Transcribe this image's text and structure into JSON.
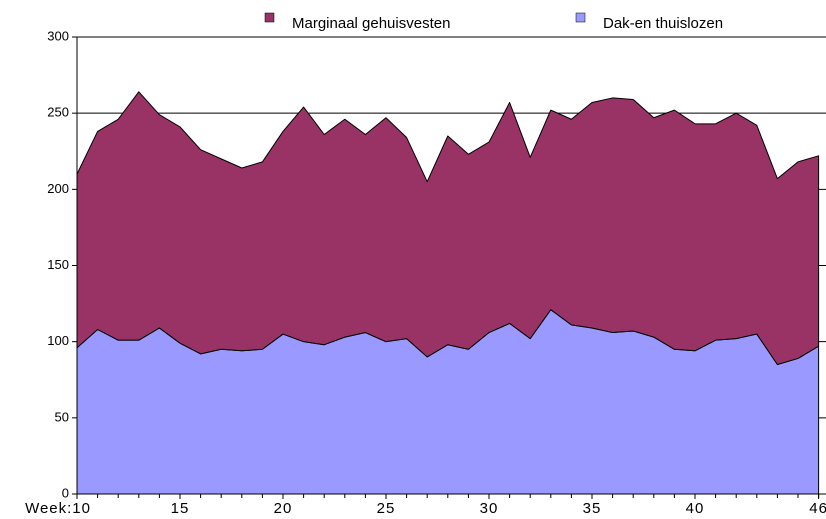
{
  "chart_data": {
    "type": "stacked-area",
    "x": [
      10,
      11,
      12,
      13,
      14,
      15,
      16,
      17,
      18,
      19,
      20,
      21,
      22,
      23,
      24,
      25,
      26,
      27,
      28,
      29,
      30,
      31,
      32,
      33,
      34,
      35,
      36,
      37,
      38,
      39,
      40,
      41,
      42,
      43,
      44,
      45,
      46
    ],
    "series": [
      {
        "name": "Marginaal gehuisvesten",
        "color": "#993366",
        "values": [
          114,
          130,
          145,
          163,
          140,
          142,
          134,
          125,
          120,
          123,
          133,
          154,
          138,
          143,
          130,
          147,
          132,
          115,
          137,
          128,
          125,
          145,
          119,
          131,
          135,
          148,
          154,
          152,
          144,
          157,
          149,
          142,
          148,
          137,
          122,
          129,
          125
        ]
      },
      {
        "name": "Dak-en thuislozen",
        "color": "#9999ff",
        "values": [
          96,
          108,
          101,
          101,
          109,
          99,
          92,
          95,
          94,
          95,
          105,
          100,
          98,
          103,
          106,
          100,
          102,
          90,
          98,
          95,
          106,
          112,
          102,
          121,
          111,
          109,
          106,
          107,
          103,
          95,
          94,
          101,
          102,
          105,
          85,
          89,
          97
        ]
      }
    ],
    "xlim": [
      10,
      46.4
    ],
    "xticks": [
      {
        "value": 10,
        "label": "Week:10"
      },
      15,
      20,
      25,
      30,
      35,
      40,
      46
    ],
    "ylim": [
      0,
      300
    ],
    "yticks": [
      0,
      50,
      100,
      150,
      200,
      250,
      300
    ],
    "grid": true
  }
}
